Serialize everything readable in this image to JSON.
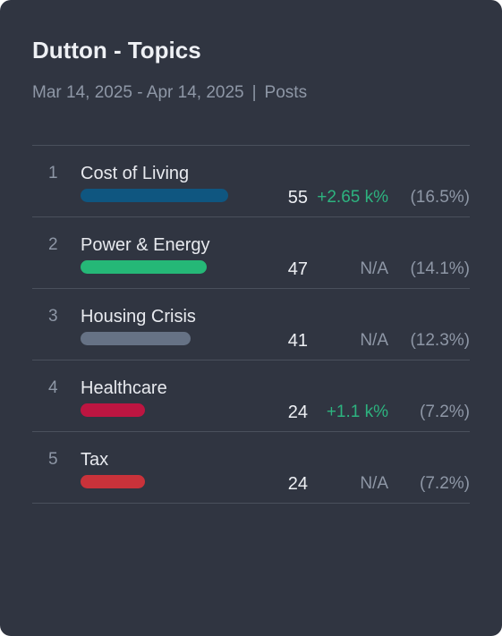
{
  "widget": {
    "title": "Dutton - Topics",
    "date_range": "Mar 14, 2025 - Apr 14, 2025",
    "separator": "|",
    "metric": "Posts"
  },
  "colors": {
    "positive": "#2db37f",
    "neutral": "#8e97a6"
  },
  "topics": [
    {
      "rank": "1",
      "label": "Cost of Living",
      "count": "55",
      "change": "+2.65 k%",
      "change_type": "positive",
      "share": "(16.5%)",
      "bar_fraction": 1.0,
      "bar_color": "#0f5680"
    },
    {
      "rank": "2",
      "label": "Power & Energy",
      "count": "47",
      "change": "N/A",
      "change_type": "neutral",
      "share": "(14.1%)",
      "bar_fraction": 0.855,
      "bar_color": "#25b877"
    },
    {
      "rank": "3",
      "label": "Housing Crisis",
      "count": "41",
      "change": "N/A",
      "change_type": "neutral",
      "share": "(12.3%)",
      "bar_fraction": 0.745,
      "bar_color": "#667285"
    },
    {
      "rank": "4",
      "label": "Healthcare",
      "count": "24",
      "change": "+1.1 k%",
      "change_type": "positive",
      "share": "(7.2%)",
      "bar_fraction": 0.436,
      "bar_color": "#bd1541"
    },
    {
      "rank": "5",
      "label": "Tax",
      "count": "24",
      "change": "N/A",
      "change_type": "neutral",
      "share": "(7.2%)",
      "bar_fraction": 0.436,
      "bar_color": "#c9323a"
    }
  ]
}
